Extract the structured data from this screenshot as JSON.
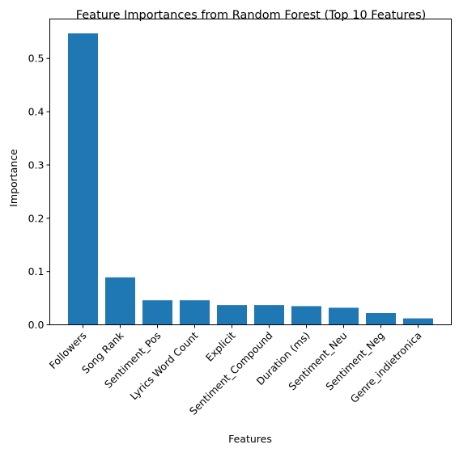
{
  "chart_data": {
    "type": "bar",
    "title": "Feature Importances from Random Forest (Top 10 Features)",
    "xlabel": "Features",
    "ylabel": "Importance",
    "categories": [
      "Followers",
      "Song Rank",
      "Sentiment_Pos",
      "Lyrics Word Count",
      "Explicit",
      "Sentiment_Compound",
      "Duration (ms)",
      "Sentiment_Neu",
      "Sentiment_Neg",
      "Genre_indietronica"
    ],
    "values": [
      0.547,
      0.089,
      0.046,
      0.046,
      0.037,
      0.037,
      0.035,
      0.032,
      0.022,
      0.012
    ],
    "ylim": [
      0,
      0.574
    ],
    "yticks": [
      0.0,
      0.1,
      0.2,
      0.3,
      0.4,
      0.5
    ],
    "ytick_labels": [
      "0.0",
      "0.1",
      "0.2",
      "0.3",
      "0.4",
      "0.5"
    ],
    "bar_color": "#1f77b4",
    "grid": false,
    "legend": "none"
  }
}
